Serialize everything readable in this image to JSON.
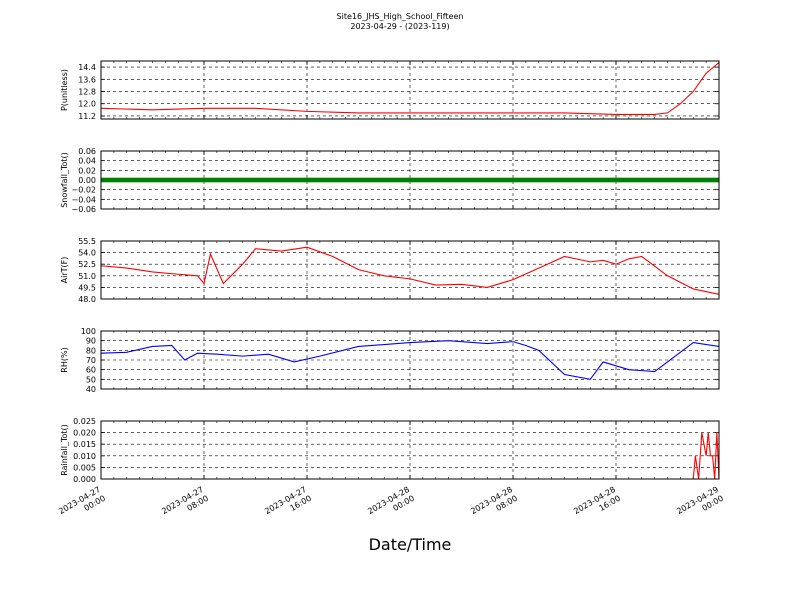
{
  "figure": {
    "title_line1": "Site16_JHS_High_School_Fifteen",
    "title_line2": "2023-04-29 - (2023-119)",
    "xlabel": "Date/Time",
    "x_ticks": [
      {
        "l1": "2023-04-27",
        "l2": "00:00"
      },
      {
        "l1": "2023-04-27",
        "l2": "08:00"
      },
      {
        "l1": "2023-04-27",
        "l2": "16:00"
      },
      {
        "l1": "2023-04-28",
        "l2": "00:00"
      },
      {
        "l1": "2023-04-28",
        "l2": "08:00"
      },
      {
        "l1": "2023-04-28",
        "l2": "16:00"
      },
      {
        "l1": "2023-04-29",
        "l2": "00:00"
      }
    ]
  },
  "chart_data": [
    {
      "type": "line",
      "ylabel": "P(unitless)",
      "yticks": [
        "11.2",
        "12.0",
        "12.8",
        "13.6",
        "14.4"
      ],
      "ylim": [
        11.0,
        14.8
      ],
      "xlim": [
        "2023-04-27 00:00",
        "2023-04-29 00:00"
      ],
      "grid": true,
      "series": [
        {
          "color": "#ff0000",
          "x": [
            "2023-04-27 00:00",
            "2023-04-27 04:00",
            "2023-04-27 08:00",
            "2023-04-27 12:00",
            "2023-04-27 16:00",
            "2023-04-27 20:00",
            "2023-04-28 00:00",
            "2023-04-28 04:00",
            "2023-04-28 08:00",
            "2023-04-28 12:00",
            "2023-04-28 16:00",
            "2023-04-28 19:00",
            "2023-04-28 20:00",
            "2023-04-28 21:00",
            "2023-04-28 22:00",
            "2023-04-28 23:00",
            "2023-04-29 00:00"
          ],
          "values": [
            11.7,
            11.6,
            11.7,
            11.7,
            11.5,
            11.4,
            11.4,
            11.4,
            11.4,
            11.4,
            11.3,
            11.3,
            11.4,
            12.0,
            12.8,
            14.0,
            14.7
          ]
        }
      ]
    },
    {
      "type": "scatter",
      "ylabel": "Snowfall_Tot()",
      "yticks": [
        "−0.06",
        "−0.04",
        "−0.02",
        "0.00",
        "0.02",
        "0.04",
        "0.06"
      ],
      "ylim": [
        -0.06,
        0.06
      ],
      "xlim": [
        "2023-04-27 00:00",
        "2023-04-29 00:00"
      ],
      "grid": true,
      "series": [
        {
          "color": "#008000",
          "x": [
            "2023-04-27 00:00",
            "2023-04-29 00:00"
          ],
          "values": [
            0.0,
            0.0
          ]
        }
      ]
    },
    {
      "type": "line",
      "ylabel": "AirT(F)",
      "yticks": [
        "48.0",
        "49.5",
        "51.0",
        "52.5",
        "54.0",
        "55.5"
      ],
      "ylim": [
        48.0,
        55.5
      ],
      "xlim": [
        "2023-04-27 00:00",
        "2023-04-29 00:00"
      ],
      "grid": true,
      "series": [
        {
          "color": "#ff0000",
          "x": [
            "2023-04-27 00:00",
            "2023-04-27 02:00",
            "2023-04-27 04:00",
            "2023-04-27 06:00",
            "2023-04-27 07:30",
            "2023-04-27 08:00",
            "2023-04-27 08:30",
            "2023-04-27 09:30",
            "2023-04-27 11:00",
            "2023-04-27 12:00",
            "2023-04-27 14:00",
            "2023-04-27 16:00",
            "2023-04-27 18:00",
            "2023-04-27 20:00",
            "2023-04-27 22:00",
            "2023-04-28 00:00",
            "2023-04-28 02:00",
            "2023-04-28 04:00",
            "2023-04-28 06:00",
            "2023-04-28 08:00",
            "2023-04-28 10:00",
            "2023-04-28 12:00",
            "2023-04-28 14:00",
            "2023-04-28 15:00",
            "2023-04-28 16:00",
            "2023-04-28 17:00",
            "2023-04-28 18:00",
            "2023-04-28 20:00",
            "2023-04-28 22:00",
            "2023-04-29 00:00"
          ],
          "values": [
            52.3,
            52.0,
            51.5,
            51.2,
            51.0,
            50.0,
            53.8,
            50.0,
            52.5,
            54.5,
            54.2,
            54.7,
            53.5,
            51.8,
            51.0,
            50.6,
            49.8,
            49.9,
            49.5,
            50.5,
            52.0,
            53.5,
            52.8,
            53.0,
            52.5,
            53.2,
            53.5,
            51.0,
            49.3,
            48.6
          ]
        }
      ]
    },
    {
      "type": "line",
      "ylabel": "RH(%)",
      "yticks": [
        "40",
        "50",
        "60",
        "70",
        "80",
        "90",
        "100"
      ],
      "ylim": [
        40,
        100
      ],
      "xlim": [
        "2023-04-27 00:00",
        "2023-04-29 00:00"
      ],
      "grid": true,
      "series": [
        {
          "color": "#0000ff",
          "x": [
            "2023-04-27 00:00",
            "2023-04-27 02:00",
            "2023-04-27 04:00",
            "2023-04-27 05:30",
            "2023-04-27 06:30",
            "2023-04-27 07:30",
            "2023-04-27 09:00",
            "2023-04-27 11:00",
            "2023-04-27 13:00",
            "2023-04-27 15:00",
            "2023-04-27 17:00",
            "2023-04-27 20:00",
            "2023-04-28 00:00",
            "2023-04-28 03:00",
            "2023-04-28 06:00",
            "2023-04-28 08:00",
            "2023-04-28 09:00",
            "2023-04-28 10:00",
            "2023-04-28 12:00",
            "2023-04-28 14:00",
            "2023-04-28 15:00",
            "2023-04-28 17:00",
            "2023-04-28 19:00",
            "2023-04-28 20:00",
            "2023-04-28 22:00",
            "2023-04-29 00:00"
          ],
          "values": [
            77,
            78,
            84,
            85,
            70,
            77,
            76,
            74,
            76,
            68,
            74,
            84,
            88,
            90,
            87,
            89,
            85,
            80,
            55,
            50,
            68,
            60,
            58,
            68,
            88,
            84
          ]
        }
      ]
    },
    {
      "type": "line",
      "ylabel": "Rainfall_Tot()",
      "yticks": [
        "0.000",
        "0.005",
        "0.010",
        "0.015",
        "0.020",
        "0.025"
      ],
      "ylim": [
        0.0,
        0.025
      ],
      "xlim": [
        "2023-04-27 00:00",
        "2023-04-29 00:00"
      ],
      "grid": true,
      "series": [
        {
          "color": "#ff0000",
          "x": [
            "2023-04-27 00:00",
            "2023-04-28 22:00",
            "2023-04-28 22:10",
            "2023-04-28 22:25",
            "2023-04-28 22:40",
            "2023-04-28 23:00",
            "2023-04-28 23:10",
            "2023-04-28 23:20",
            "2023-04-28 23:30",
            "2023-04-28 23:40",
            "2023-04-28 23:50",
            "2023-04-29 00:00"
          ],
          "values": [
            0.0,
            0.0,
            0.01,
            0.0,
            0.02,
            0.01,
            0.02,
            0.01,
            0.01,
            0.0,
            0.02,
            0.0
          ]
        }
      ]
    }
  ]
}
